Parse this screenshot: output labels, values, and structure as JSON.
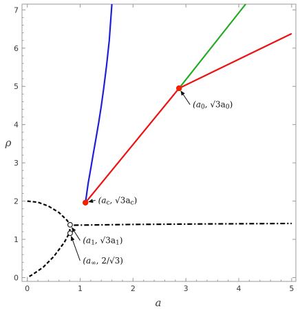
{
  "chart_data": {
    "type": "line",
    "title": "",
    "xlabel": "a",
    "ylabel": "ρ",
    "xlim": [
      -0.1,
      5.08
    ],
    "ylim": [
      -0.1,
      7.15
    ],
    "x_ticks": [
      "0",
      "1",
      "2",
      "3",
      "4",
      "5"
    ],
    "y_ticks": [
      "0",
      "1",
      "2",
      "3",
      "4",
      "5",
      "6",
      "7"
    ],
    "grid": false,
    "legend": "none",
    "series": [
      {
        "color": "#1f1fd6",
        "style": "solid",
        "points": [
          [
            1.1,
            1.96
          ],
          [
            1.15,
            2.45
          ],
          [
            1.2,
            2.85
          ],
          [
            1.25,
            3.25
          ],
          [
            1.3,
            3.65
          ],
          [
            1.35,
            4.05
          ],
          [
            1.4,
            4.5
          ],
          [
            1.45,
            5.0
          ],
          [
            1.5,
            5.55
          ],
          [
            1.55,
            6.2
          ],
          [
            1.6,
            7.15
          ]
        ]
      },
      {
        "color": "#ee1111",
        "style": "solid",
        "points": [
          [
            1.1,
            1.96
          ],
          [
            2.87,
            4.95
          ],
          [
            5.0,
            6.38
          ]
        ]
      },
      {
        "color": "#22aa22",
        "style": "solid",
        "points": [
          [
            2.87,
            4.95
          ],
          [
            4.13,
            7.15
          ]
        ]
      },
      {
        "color": "#000000",
        "style": "dashed",
        "points": [
          [
            0.0,
            2.0
          ],
          [
            0.2,
            1.97
          ],
          [
            0.4,
            1.87
          ],
          [
            0.6,
            1.7
          ],
          [
            0.75,
            1.5
          ],
          [
            0.81,
            1.38
          ],
          [
            0.8,
            1.18
          ],
          [
            0.7,
            0.92
          ],
          [
            0.5,
            0.55
          ],
          [
            0.3,
            0.27
          ],
          [
            0.1,
            0.08
          ],
          [
            0.0,
            0.0
          ]
        ]
      },
      {
        "color": "#000000",
        "style": "dashdot",
        "points": [
          [
            0.88,
            1.37
          ],
          [
            2.0,
            1.39
          ],
          [
            3.5,
            1.405
          ],
          [
            5.0,
            1.415
          ]
        ]
      }
    ],
    "markers": [
      {
        "label": "(a_c, √3 a_c)",
        "x": 1.1,
        "y": 1.96,
        "color": "#ee2200",
        "filled": true
      },
      {
        "label": "(a_0, √3 a_0)",
        "x": 2.87,
        "y": 4.95,
        "color": "#ee2200",
        "filled": true
      },
      {
        "label": "(a_1, √3 a_1)",
        "x": 0.81,
        "y": 1.38,
        "color": "#000000",
        "filled": false
      },
      {
        "label": "(a_∞, 2/√3)",
        "x": 0.81,
        "y": 1.16,
        "color": "#000000",
        "filled": false
      }
    ],
    "annotations": [
      {
        "base": "(a",
        "sub": "c",
        "mid": ", √3a",
        "sub2": "c",
        "end": ")",
        "tx": 1.34,
        "ty": 1.95,
        "ax": 1.1,
        "ay": 1.96
      },
      {
        "base": "(a",
        "sub": "0",
        "mid": ", √3a",
        "sub2": "0",
        "end": ")",
        "tx": 3.13,
        "ty": 4.45,
        "ax": 2.87,
        "ay": 4.95
      },
      {
        "base": "(a",
        "sub": "1",
        "mid": ", √3a",
        "sub2": "1",
        "end": ")",
        "tx": 1.05,
        "ty": 0.9,
        "ax": 0.81,
        "ay": 1.38
      },
      {
        "base": "(a",
        "sub": "∞",
        "mid": ", 2/√3",
        "sub2": "",
        "end": ")",
        "tx": 1.05,
        "ty": 0.37,
        "ax": 0.81,
        "ay": 1.16
      }
    ]
  }
}
